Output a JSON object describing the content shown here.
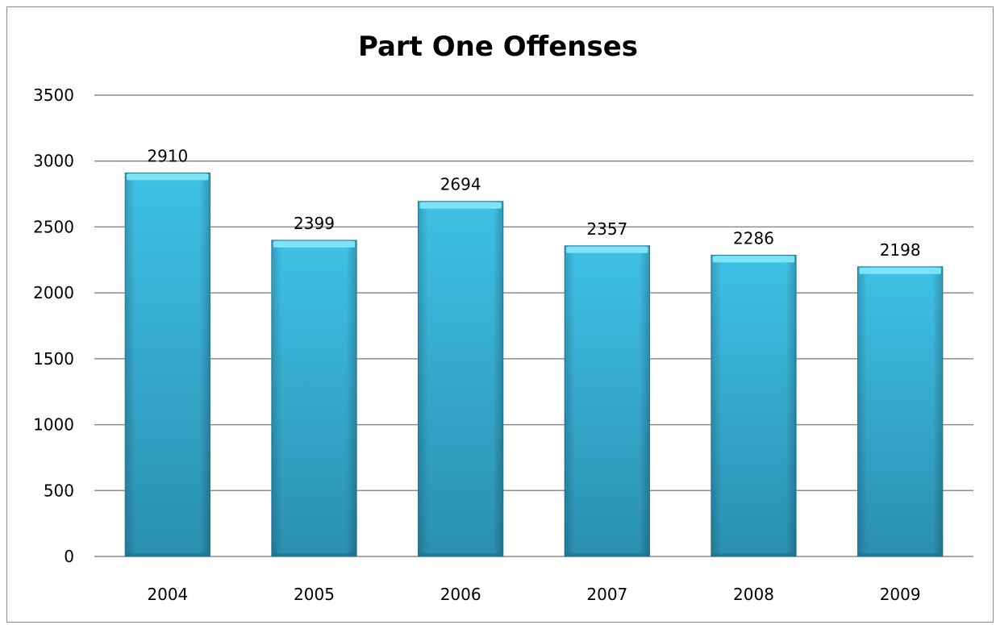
{
  "chart_data": {
    "type": "bar",
    "title": "Part One Offenses",
    "xlabel": "",
    "ylabel": "",
    "categories": [
      "2004",
      "2005",
      "2006",
      "2007",
      "2008",
      "2009"
    ],
    "values": [
      2910,
      2399,
      2694,
      2357,
      2286,
      2198
    ],
    "ylim": [
      0,
      3500
    ],
    "yticks": [
      0,
      500,
      1000,
      1500,
      2000,
      2500,
      3000,
      3500
    ],
    "grid": true,
    "legend": "none",
    "colors": {
      "bar": "#3bb8df",
      "bar_dark": "#2a8fb2",
      "bar_top": "#7fe3f7",
      "grid": "#8c8c8c"
    }
  }
}
